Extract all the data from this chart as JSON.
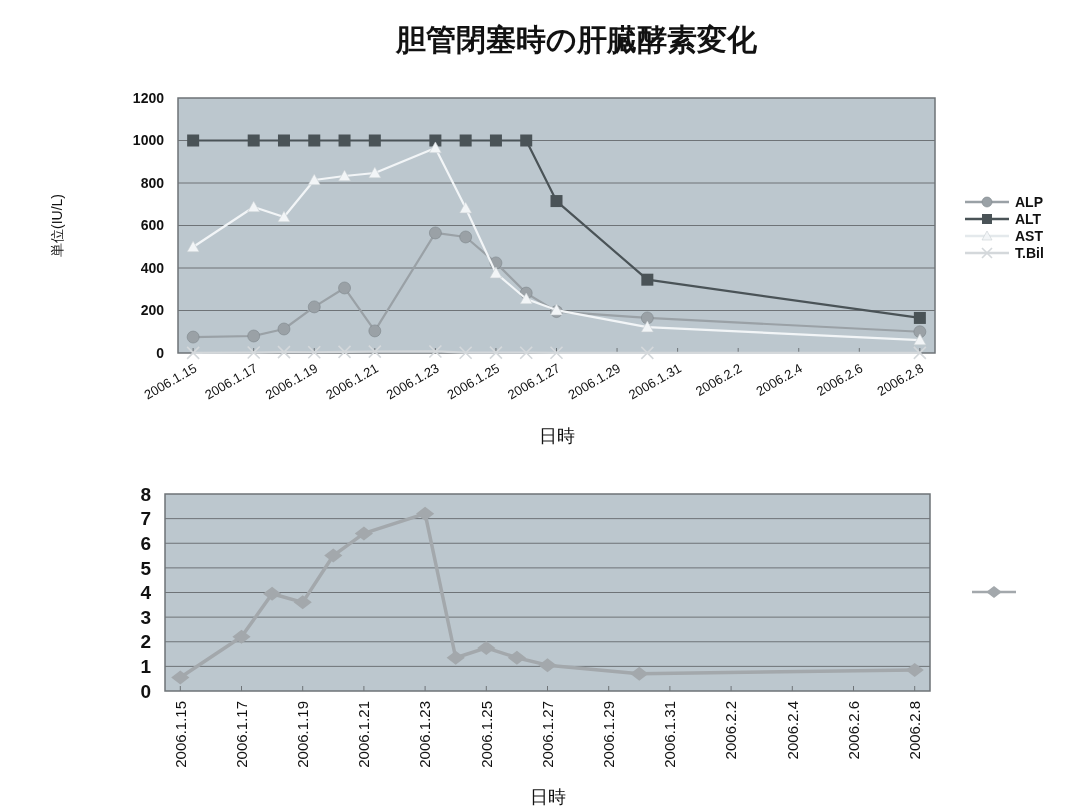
{
  "chart_data": [
    {
      "type": "line",
      "title": "胆管閉塞時の肝臓酵素変化",
      "xlabel": "日時",
      "ylabel": "単位(IU/L)",
      "x": [
        "2006-01-15",
        "2006-01-17",
        "2006-01-18",
        "2006-01-19",
        "2006-01-20",
        "2006-01-21",
        "2006-01-23",
        "2006-01-24",
        "2006-01-25",
        "2006-01-26",
        "2006-01-27",
        "2006-01-30",
        "2006-02-08"
      ],
      "xlim": [
        "2006-01-14T12:00",
        "2006-02-08T12:00"
      ],
      "xticks": [
        {
          "value": "2006-01-15",
          "label": "2006.1.15"
        },
        {
          "value": "2006-01-17",
          "label": "2006.1.17"
        },
        {
          "value": "2006-01-19",
          "label": "2006.1.19"
        },
        {
          "value": "2006-01-21",
          "label": "2006.1.21"
        },
        {
          "value": "2006-01-23",
          "label": "2006.1.23"
        },
        {
          "value": "2006-01-25",
          "label": "2006.1.25"
        },
        {
          "value": "2006-01-27",
          "label": "2006.1.27"
        },
        {
          "value": "2006-01-29",
          "label": "2006.1.29"
        },
        {
          "value": "2006-01-31",
          "label": "2006.1.31"
        },
        {
          "value": "2006-02-02",
          "label": "2006.2.2"
        },
        {
          "value": "2006-02-04",
          "label": "2006.2.4"
        },
        {
          "value": "2006-02-06",
          "label": "2006.2.6"
        },
        {
          "value": "2006-02-08",
          "label": "2006.2.8"
        }
      ],
      "ylim": [
        0,
        1200
      ],
      "yticks": [
        0,
        200,
        400,
        600,
        800,
        1000,
        1200
      ],
      "grid": "y",
      "legend": "right",
      "series": [
        {
          "name": "ALP",
          "color": "#9aa1a6",
          "marker": "circle",
          "values": [
            75,
            80,
            113,
            217,
            306,
            104,
            565,
            546,
            424,
            282,
            195,
            165,
            100
          ]
        },
        {
          "name": "ALT",
          "color": "#4a5357",
          "marker": "square",
          "values": [
            1000,
            1000,
            1000,
            1000,
            1000,
            1000,
            1000,
            1000,
            1000,
            1000,
            715,
            345,
            165
          ]
        },
        {
          "name": "AST",
          "color": "#f2f5f7",
          "marker": "triangle",
          "values": [
            499,
            687,
            640,
            814,
            833,
            847,
            965,
            682,
            376,
            254,
            202,
            122,
            61
          ]
        },
        {
          "name": "T.Bil",
          "color": "#d4d8db",
          "marker": "cross",
          "values": [
            0.55,
            2.2,
            3.95,
            3.6,
            5.5,
            6.4,
            7.2,
            1.35,
            1.75,
            1.35,
            1.05,
            0.7,
            0.85
          ]
        }
      ]
    },
    {
      "type": "line",
      "xlabel": "日時",
      "x": [
        "2006-01-15",
        "2006-01-17",
        "2006-01-18",
        "2006-01-19",
        "2006-01-20",
        "2006-01-21",
        "2006-01-23",
        "2006-01-24",
        "2006-01-25",
        "2006-01-26",
        "2006-01-27",
        "2006-01-30",
        "2006-02-08"
      ],
      "xlim": [
        "2006-01-14T12:00",
        "2006-02-08T12:00"
      ],
      "xticks": [
        {
          "value": "2006-01-15",
          "label": "2006.1.15"
        },
        {
          "value": "2006-01-17",
          "label": "2006.1.17"
        },
        {
          "value": "2006-01-19",
          "label": "2006.1.19"
        },
        {
          "value": "2006-01-21",
          "label": "2006.1.21"
        },
        {
          "value": "2006-01-23",
          "label": "2006.1.23"
        },
        {
          "value": "2006-01-25",
          "label": "2006.1.25"
        },
        {
          "value": "2006-01-27",
          "label": "2006.1.27"
        },
        {
          "value": "2006-01-29",
          "label": "2006.1.29"
        },
        {
          "value": "2006-01-31",
          "label": "2006.1.31"
        },
        {
          "value": "2006-02-02",
          "label": "2006.2.2"
        },
        {
          "value": "2006-02-04",
          "label": "2006.2.4"
        },
        {
          "value": "2006-02-06",
          "label": "2006.2.6"
        },
        {
          "value": "2006-02-08",
          "label": "2006.2.8"
        }
      ],
      "ylim": [
        0,
        8
      ],
      "yticks": [
        0,
        1,
        2,
        3,
        4,
        5,
        6,
        7,
        8
      ],
      "grid": "y",
      "series": [
        {
          "color": "#a3a8ac",
          "marker": "diamond",
          "values": [
            0.55,
            2.2,
            3.95,
            3.6,
            5.5,
            6.4,
            7.2,
            1.35,
            1.75,
            1.35,
            1.05,
            0.7,
            0.85
          ]
        }
      ]
    }
  ]
}
